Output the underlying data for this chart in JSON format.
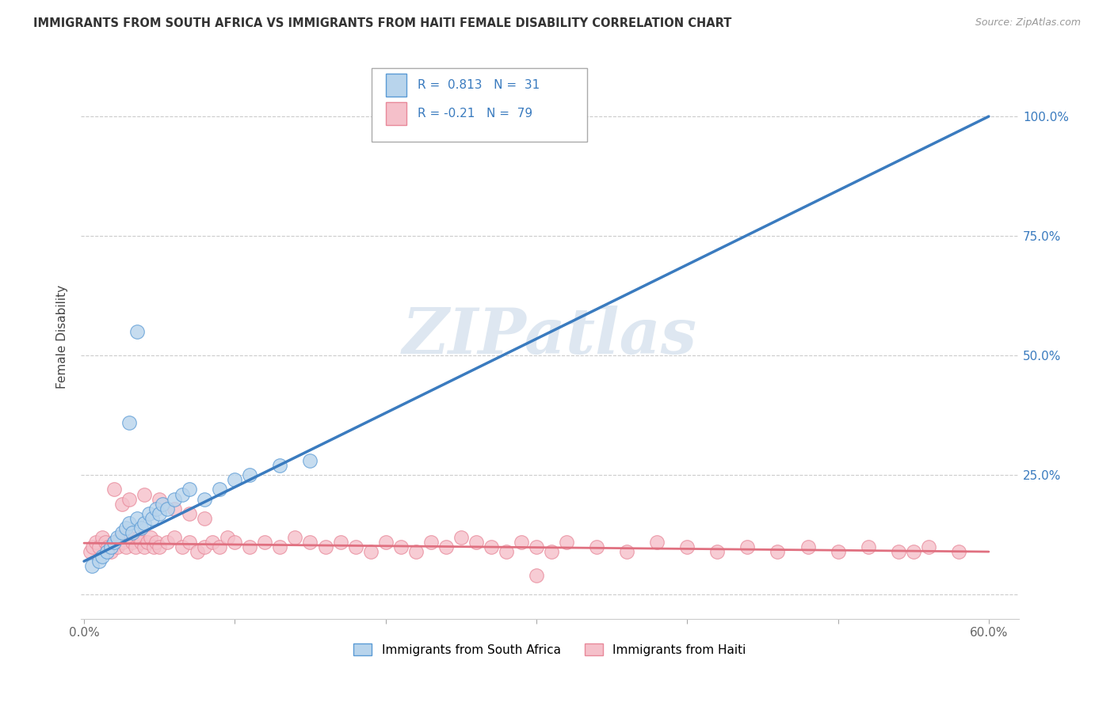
{
  "title": "IMMIGRANTS FROM SOUTH AFRICA VS IMMIGRANTS FROM HAITI FEMALE DISABILITY CORRELATION CHART",
  "source_text": "Source: ZipAtlas.com",
  "ylabel": "Female Disability",
  "xlim": [
    -0.002,
    0.62
  ],
  "ylim": [
    -0.05,
    1.13
  ],
  "ytick_vals": [
    0.0,
    0.25,
    0.5,
    0.75,
    1.0
  ],
  "ytick_labels": [
    "",
    "25.0%",
    "50.0%",
    "75.0%",
    "100.0%"
  ],
  "xtick_vals": [
    0.0,
    0.1,
    0.2,
    0.3,
    0.4,
    0.5,
    0.6
  ],
  "xtick_labels": [
    "0.0%",
    "",
    "",
    "",
    "",
    "",
    "60.0%"
  ],
  "south_africa_R": 0.813,
  "south_africa_N": 31,
  "haiti_R": -0.21,
  "haiti_N": 79,
  "sa_fill_color": "#b8d4ec",
  "sa_edge_color": "#5b9bd5",
  "ht_fill_color": "#f5c0ca",
  "ht_edge_color": "#e8899a",
  "sa_line_color": "#3a7bbf",
  "ht_line_color": "#e07080",
  "watermark": "ZIPatlas",
  "watermark_color": "#c8d8e8",
  "legend_label_sa": "Immigrants from South Africa",
  "legend_label_ht": "Immigrants from Haiti",
  "sa_line_x0": 0.0,
  "sa_line_y0": 0.07,
  "sa_line_x1": 0.6,
  "sa_line_y1": 1.0,
  "ht_line_x0": 0.0,
  "ht_line_y0": 0.108,
  "ht_line_x1": 0.6,
  "ht_line_y1": 0.09,
  "sa_scatter_x": [
    0.005,
    0.01,
    0.012,
    0.015,
    0.018,
    0.02,
    0.022,
    0.025,
    0.028,
    0.03,
    0.032,
    0.035,
    0.038,
    0.04,
    0.043,
    0.045,
    0.048,
    0.05,
    0.052,
    0.055,
    0.06,
    0.065,
    0.07,
    0.08,
    0.09,
    0.1,
    0.035,
    0.03,
    0.11,
    0.13,
    0.15
  ],
  "sa_scatter_y": [
    0.06,
    0.07,
    0.08,
    0.09,
    0.1,
    0.11,
    0.12,
    0.13,
    0.14,
    0.15,
    0.13,
    0.16,
    0.14,
    0.15,
    0.17,
    0.16,
    0.18,
    0.17,
    0.19,
    0.18,
    0.2,
    0.21,
    0.22,
    0.2,
    0.22,
    0.24,
    0.55,
    0.36,
    0.25,
    0.27,
    0.28
  ],
  "ht_scatter_x": [
    0.004,
    0.006,
    0.008,
    0.01,
    0.012,
    0.014,
    0.016,
    0.018,
    0.02,
    0.022,
    0.024,
    0.026,
    0.028,
    0.03,
    0.032,
    0.034,
    0.036,
    0.038,
    0.04,
    0.042,
    0.044,
    0.046,
    0.048,
    0.05,
    0.055,
    0.06,
    0.065,
    0.07,
    0.075,
    0.08,
    0.085,
    0.09,
    0.095,
    0.1,
    0.11,
    0.12,
    0.13,
    0.14,
    0.15,
    0.16,
    0.17,
    0.18,
    0.19,
    0.2,
    0.21,
    0.22,
    0.23,
    0.24,
    0.25,
    0.26,
    0.27,
    0.28,
    0.29,
    0.3,
    0.31,
    0.32,
    0.34,
    0.36,
    0.38,
    0.4,
    0.42,
    0.44,
    0.46,
    0.48,
    0.5,
    0.52,
    0.54,
    0.56,
    0.58,
    0.02,
    0.025,
    0.03,
    0.04,
    0.05,
    0.06,
    0.07,
    0.08,
    0.55,
    0.3
  ],
  "ht_scatter_y": [
    0.09,
    0.1,
    0.11,
    0.1,
    0.12,
    0.11,
    0.1,
    0.09,
    0.11,
    0.1,
    0.12,
    0.11,
    0.1,
    0.12,
    0.11,
    0.1,
    0.12,
    0.11,
    0.1,
    0.11,
    0.12,
    0.1,
    0.11,
    0.1,
    0.11,
    0.12,
    0.1,
    0.11,
    0.09,
    0.1,
    0.11,
    0.1,
    0.12,
    0.11,
    0.1,
    0.11,
    0.1,
    0.12,
    0.11,
    0.1,
    0.11,
    0.1,
    0.09,
    0.11,
    0.1,
    0.09,
    0.11,
    0.1,
    0.12,
    0.11,
    0.1,
    0.09,
    0.11,
    0.1,
    0.09,
    0.11,
    0.1,
    0.09,
    0.11,
    0.1,
    0.09,
    0.1,
    0.09,
    0.1,
    0.09,
    0.1,
    0.09,
    0.1,
    0.09,
    0.22,
    0.19,
    0.2,
    0.21,
    0.2,
    0.18,
    0.17,
    0.16,
    0.09,
    0.04
  ]
}
